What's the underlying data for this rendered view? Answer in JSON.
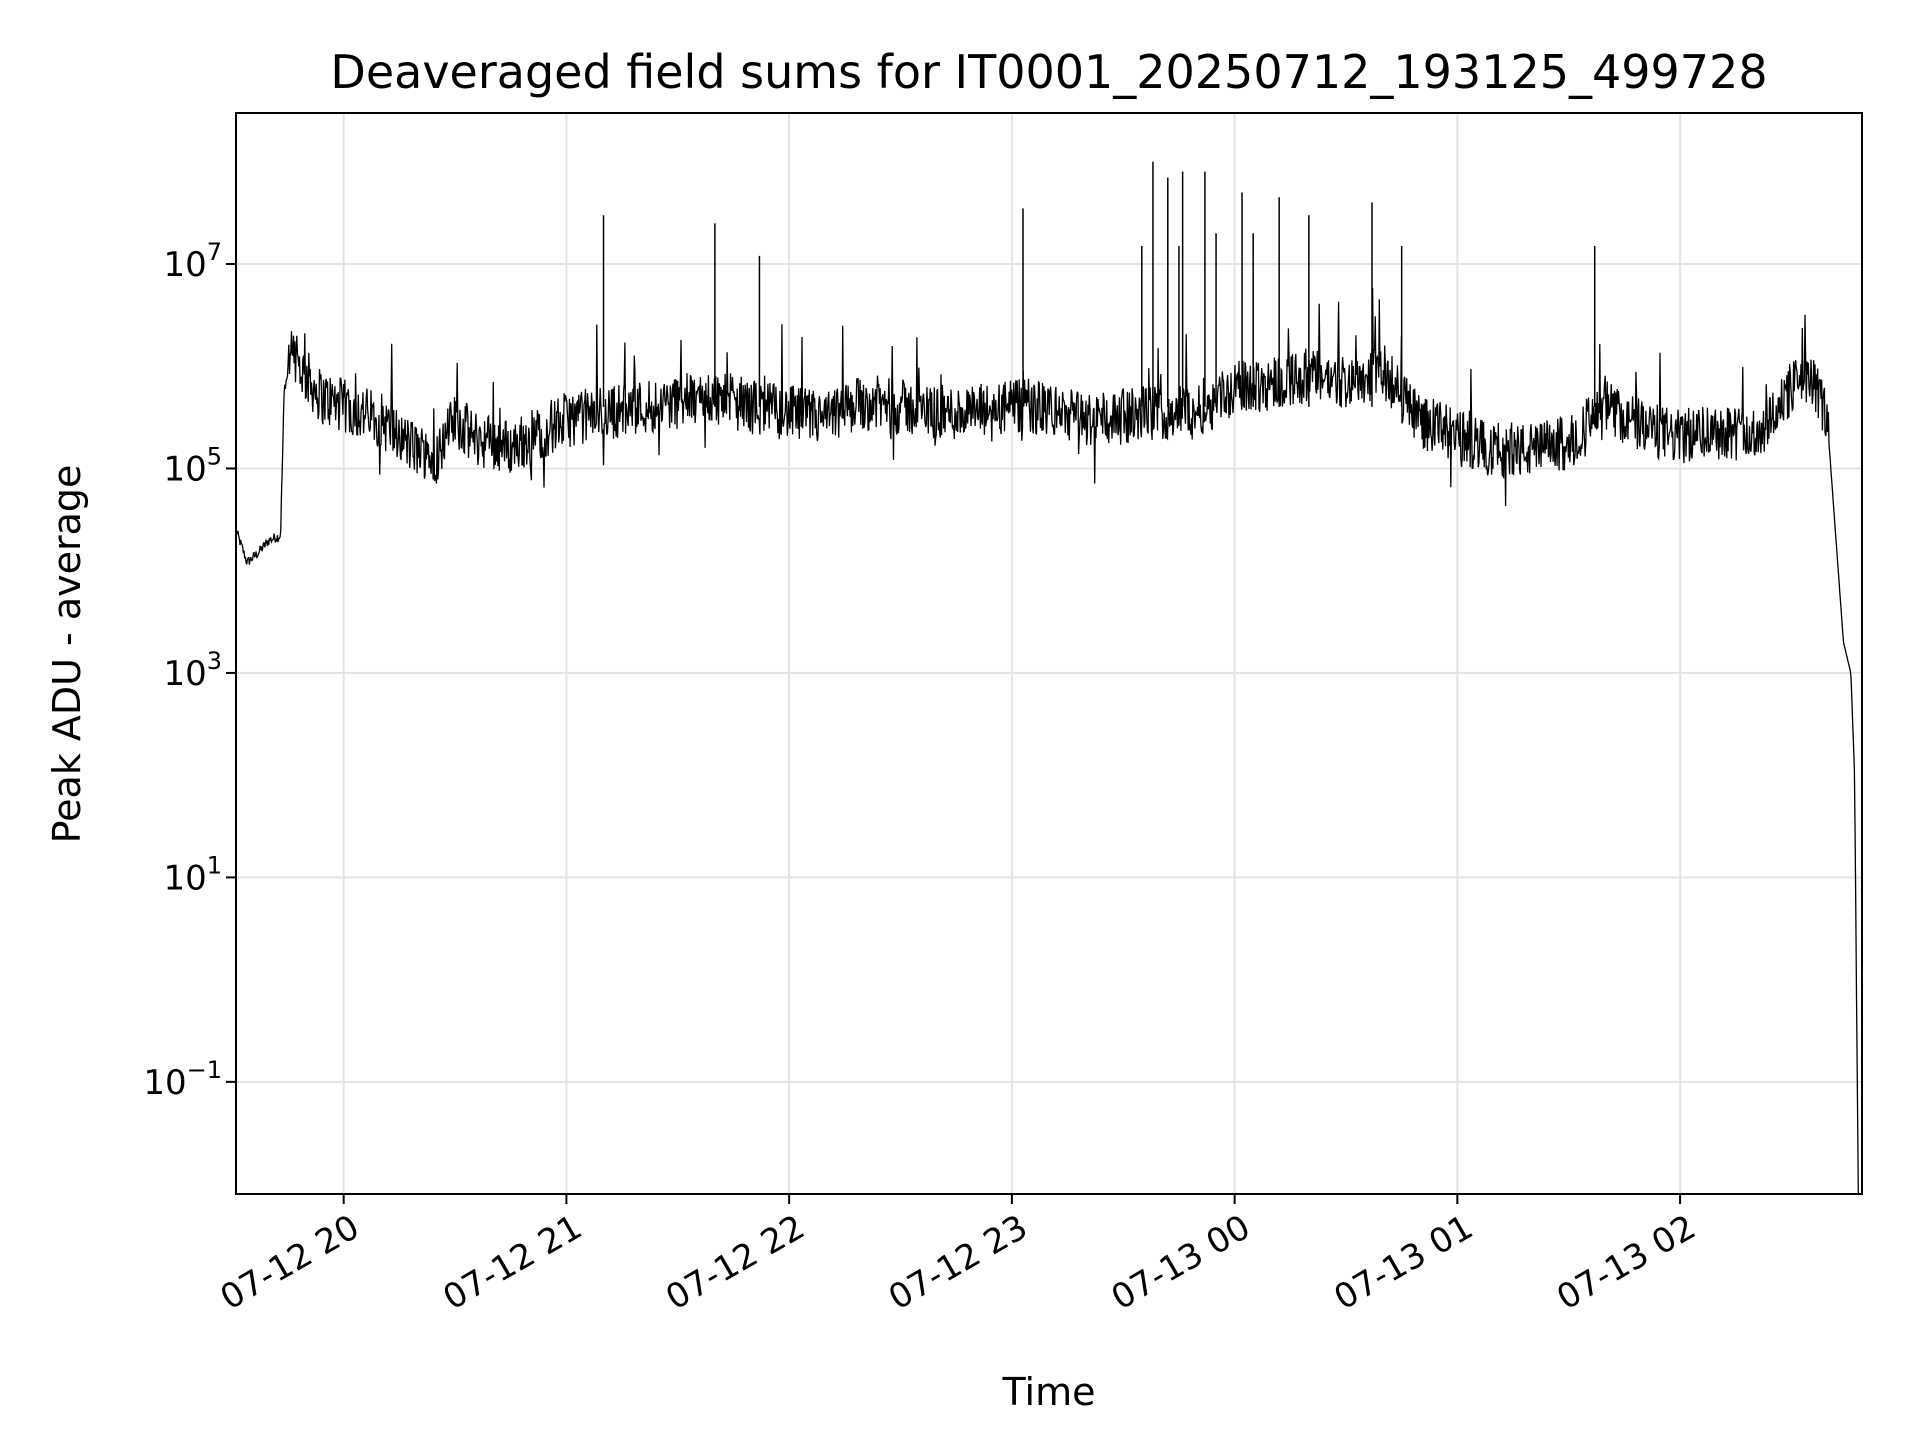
{
  "chart_data": {
    "type": "line",
    "title": "Deaveraged field sums for IT0001_20250712_193125_499728",
    "xlabel": "Time",
    "ylabel": "Peak ADU - average",
    "yscale": "log",
    "ylim": [
      0.008,
      300000000
    ],
    "xlim": [
      "07-12 19:31",
      "07-13 02:49"
    ],
    "grid": true,
    "line_color": "#000000",
    "x_ticks": [
      {
        "label": "07-12 20",
        "t": "07-12 20:00"
      },
      {
        "label": "07-12 21",
        "t": "07-12 21:00"
      },
      {
        "label": "07-12 22",
        "t": "07-12 22:00"
      },
      {
        "label": "07-12 23",
        "t": "07-12 23:00"
      },
      {
        "label": "07-13 00",
        "t": "07-13 00:00"
      },
      {
        "label": "07-13 01",
        "t": "07-13 01:00"
      },
      {
        "label": "07-13 02",
        "t": "07-13 02:00"
      }
    ],
    "y_ticks": [
      {
        "base": "10",
        "exp": "7",
        "value": 10000000
      },
      {
        "base": "10",
        "exp": "5",
        "value": 100000
      },
      {
        "base": "10",
        "exp": "3",
        "value": 1000
      },
      {
        "base": "10",
        "exp": "1",
        "value": 10
      },
      {
        "base": "10",
        "exp": "−1",
        "value": 0.1
      }
    ],
    "series": [
      {
        "x": [
          "07-12 19:31",
          "07-12 19:34",
          "07-12 19:37",
          "07-12 19:40",
          "07-12 19:43",
          "07-12 19:44",
          "07-12 19:46",
          "07-12 19:48",
          "07-12 19:51",
          "07-12 19:54",
          "07-12 19:57",
          "07-12 20:00",
          "07-12 20:05",
          "07-12 20:10",
          "07-12 20:15",
          "07-12 20:20",
          "07-12 20:25",
          "07-12 20:30",
          "07-12 20:35",
          "07-12 20:40",
          "07-12 20:45",
          "07-12 20:50",
          "07-12 21:00",
          "07-12 21:10",
          "07-12 21:20",
          "07-12 21:30",
          "07-12 21:40",
          "07-12 21:50",
          "07-12 22:00",
          "07-12 22:10",
          "07-12 22:20",
          "07-12 22:30",
          "07-12 22:40",
          "07-12 22:50",
          "07-12 23:00",
          "07-12 23:10",
          "07-12 23:20",
          "07-12 23:30",
          "07-12 23:40",
          "07-12 23:50",
          "07-13 00:00",
          "07-13 00:10",
          "07-13 00:20",
          "07-13 00:30",
          "07-13 00:40",
          "07-13 00:50",
          "07-13 01:00",
          "07-13 01:10",
          "07-13 01:20",
          "07-13 01:30",
          "07-13 01:40",
          "07-13 01:50",
          "07-13 02:00",
          "07-13 02:10",
          "07-13 02:20",
          "07-13 02:30",
          "07-13 02:34",
          "07-13 02:38",
          "07-13 02:40",
          "07-13 02:42",
          "07-13 02:44",
          "07-13 02:46",
          "07-13 02:47",
          "07-13 02:48"
        ],
        "y": [
          25000,
          12000,
          15000,
          20000,
          22000,
          600000,
          1200000,
          1000000,
          700000,
          500000,
          450000,
          400000,
          350000,
          300000,
          200000,
          150000,
          130000,
          300000,
          200000,
          180000,
          160000,
          200000,
          300000,
          350000,
          400000,
          450000,
          500000,
          400000,
          350000,
          300000,
          450000,
          400000,
          350000,
          350000,
          400000,
          380000,
          300000,
          320000,
          350000,
          380000,
          600000,
          700000,
          800000,
          700000,
          900000,
          300000,
          200000,
          150000,
          150000,
          180000,
          400000,
          250000,
          200000,
          250000,
          200000,
          600000,
          800000,
          500000,
          200000,
          20000,
          2000,
          1000,
          100,
          0.008
        ]
      }
    ],
    "spikes": [
      {
        "t": "07-12 21:10",
        "y": 30000000
      },
      {
        "t": "07-12 21:40",
        "y": 25000000
      },
      {
        "t": "07-12 21:52",
        "y": 12000000
      },
      {
        "t": "07-12 23:03",
        "y": 35000000
      },
      {
        "t": "07-12 23:35",
        "y": 15000000
      },
      {
        "t": "07-12 23:45",
        "y": 15000000
      },
      {
        "t": "07-12 23:55",
        "y": 20000000
      },
      {
        "t": "07-13 00:05",
        "y": 20000000
      },
      {
        "t": "07-12 23:38",
        "y": 100000000
      },
      {
        "t": "07-12 23:42",
        "y": 70000000
      },
      {
        "t": "07-12 23:46",
        "y": 80000000
      },
      {
        "t": "07-12 23:52",
        "y": 80000000
      },
      {
        "t": "07-13 00:02",
        "y": 50000000
      },
      {
        "t": "07-13 00:12",
        "y": 45000000
      },
      {
        "t": "07-13 00:20",
        "y": 30000000
      },
      {
        "t": "07-13 00:37",
        "y": 40000000
      },
      {
        "t": "07-13 00:45",
        "y": 15000000
      },
      {
        "t": "07-13 01:37",
        "y": 15000000
      }
    ]
  }
}
